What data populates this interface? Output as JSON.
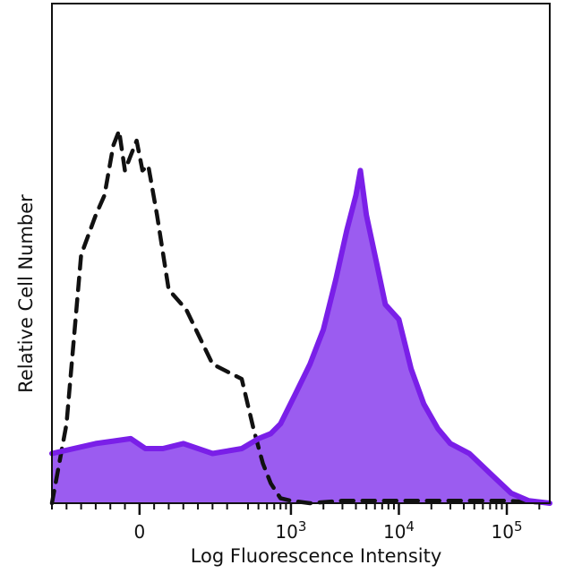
{
  "chart_data": {
    "type": "area",
    "title": "",
    "xlabel": "Log Fluorescence Intensity",
    "ylabel": "Relative Cell Number",
    "x_scale": "biexponential (log decades with linear region around 0)",
    "x_ticks": [
      {
        "label": "0",
        "value": 0
      },
      {
        "label": "10",
        "sup": "3",
        "value": 1000
      },
      {
        "label": "10",
        "sup": "4",
        "value": 10000
      },
      {
        "label": "10",
        "sup": "5",
        "value": 100000
      }
    ],
    "xlim": [
      -300,
      250000
    ],
    "ylim": [
      0,
      100
    ],
    "grid": false,
    "legend": "none",
    "series": [
      {
        "style": "dashed",
        "color": "#111111",
        "fill": "none",
        "x": [
          -300,
          -250,
          -200,
          -150,
          -120,
          -90,
          -70,
          -50,
          -30,
          -10,
          10,
          30,
          60,
          100,
          160,
          250,
          350,
          450,
          550,
          650,
          800,
          1000,
          1500,
          3000,
          10000,
          100000,
          250000
        ],
        "y": [
          0,
          16,
          50,
          58,
          62,
          72,
          75,
          67,
          70,
          73,
          67,
          68,
          58,
          43,
          39,
          28,
          25,
          15,
          8,
          4,
          1,
          0.5,
          0,
          0.5,
          0.5,
          0.5,
          0
        ]
      },
      {
        "style": "solid",
        "color": "#7a1fe8",
        "fill": "#9b5cf0",
        "x": [
          -300,
          -150,
          -30,
          20,
          80,
          150,
          250,
          350,
          500,
          650,
          800,
          1100,
          1500,
          2000,
          2600,
          3300,
          4000,
          4400,
          5000,
          6000,
          7500,
          10000,
          13000,
          17000,
          23000,
          30000,
          45000,
          70000,
          110000,
          160000,
          250000
        ],
        "y": [
          10,
          12,
          13,
          11,
          11,
          12,
          10,
          11,
          13,
          14,
          16,
          22,
          28,
          35,
          45,
          55,
          62,
          67,
          58,
          50,
          40,
          37,
          27,
          20,
          15,
          12,
          10,
          6,
          2,
          0.5,
          0
        ]
      }
    ]
  }
}
